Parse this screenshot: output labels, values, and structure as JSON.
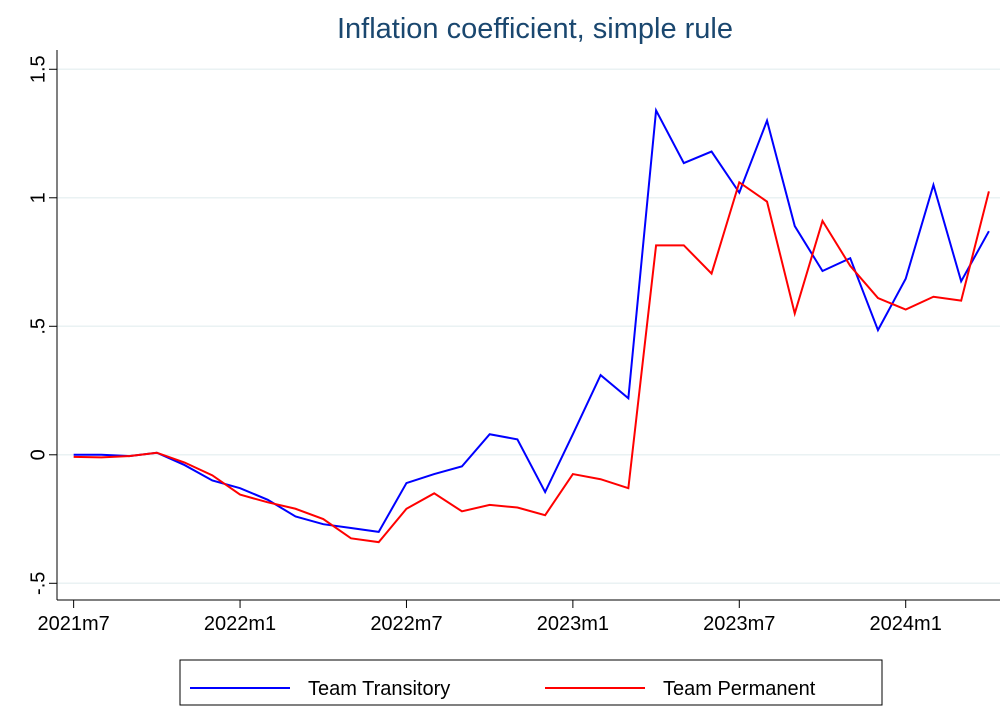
{
  "chart_data": {
    "type": "line",
    "title": "Inflation coefficient, simple rule",
    "x": [
      738,
      739,
      740,
      741,
      742,
      743,
      744,
      745,
      746,
      747,
      748,
      749,
      750,
      751,
      752,
      753,
      754,
      755,
      756,
      757,
      758,
      759,
      760,
      761,
      762,
      763,
      764,
      765,
      766,
      767,
      768,
      769,
      770,
      771
    ],
    "xlim": [
      737.4,
      771.4
    ],
    "xticks": [
      {
        "value": 738,
        "label": "2021m7"
      },
      {
        "value": 744,
        "label": "2022m1"
      },
      {
        "value": 750,
        "label": "2022m7"
      },
      {
        "value": 756,
        "label": "2023m1"
      },
      {
        "value": 762,
        "label": "2023m7"
      },
      {
        "value": 768,
        "label": "2024m1"
      }
    ],
    "ylim": [
      -0.565,
      1.575
    ],
    "yticks": [
      {
        "value": -0.5,
        "label": "-.5"
      },
      0,
      {
        "value": 0.5,
        "label": ".5"
      },
      1,
      1.5
    ],
    "grid": true,
    "legend": "bottom",
    "series": [
      {
        "name": "Team Transitory",
        "color": "#0000ff",
        "values": [
          0,
          0,
          -0.005,
          0.008,
          -0.04,
          -0.1,
          -0.13,
          -0.175,
          -0.24,
          -0.27,
          -0.285,
          -0.3,
          -0.11,
          -0.075,
          -0.045,
          0.08,
          0.06,
          -0.145,
          0.08,
          0.31,
          0.22,
          1.34,
          1.135,
          1.18,
          1.02,
          1.3,
          0.89,
          0.715,
          0.765,
          0.485,
          0.685,
          1.05,
          0.675,
          0.87
        ]
      },
      {
        "name": "Team Permanent",
        "color": "#ff0000",
        "values": [
          -0.008,
          -0.01,
          -0.005,
          0.008,
          -0.03,
          -0.08,
          -0.155,
          -0.185,
          -0.21,
          -0.25,
          -0.325,
          -0.34,
          -0.21,
          -0.15,
          -0.22,
          -0.195,
          -0.205,
          -0.235,
          -0.075,
          -0.095,
          -0.13,
          0.815,
          0.815,
          0.705,
          1.06,
          0.985,
          0.55,
          0.91,
          0.735,
          0.61,
          0.565,
          0.615,
          0.6,
          1.025
        ]
      }
    ]
  }
}
